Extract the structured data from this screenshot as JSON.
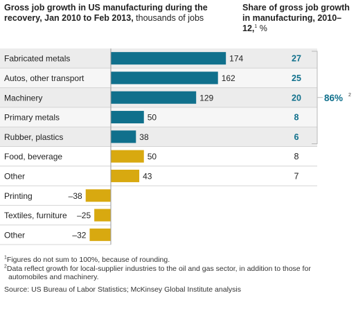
{
  "title": {
    "left_bold": "Gross job growth in US manufacturing during the recovery, Jan 2010 to Feb 2013,",
    "left_normal": " thousands of jobs",
    "right_bold": "Share of gross job growth in manufacturing, 2010–12,",
    "right_sup": "1",
    "right_normal": " %"
  },
  "chart_data": {
    "type": "bar",
    "orientation": "horizontal",
    "categories": [
      "Fabricated metals",
      "Autos, other transport",
      "Machinery",
      "Primary metals",
      "Rubber, plastics",
      "Food, beverage",
      "Other",
      "Printing",
      "Textiles, furniture",
      "Other"
    ],
    "values": [
      174,
      162,
      129,
      50,
      38,
      50,
      43,
      -38,
      -25,
      -32
    ],
    "value_labels": [
      "174",
      "162",
      "129",
      "50",
      "38",
      "50",
      "43",
      "–38",
      "–25",
      "–32"
    ],
    "groups": [
      "top",
      "top",
      "top",
      "top",
      "top",
      "mid",
      "mid",
      "neg",
      "neg",
      "neg"
    ],
    "group_colors": {
      "top": "#10708c",
      "mid": "#d8a910",
      "neg": "#d8a910"
    },
    "row_shading": true,
    "share": {
      "values": [
        "27",
        "25",
        "20",
        "8",
        "6",
        "8",
        "7"
      ],
      "highlight_rows": 5,
      "highlight_color": "#10708c",
      "total_label": "86%",
      "total_sup": "2"
    }
  },
  "footnotes": {
    "note1_sup": "1",
    "note1": "Figures do not sum to 100%, because of rounding.",
    "note2_sup": "2",
    "note2a": "Data reflect growth for local-supplier industries to the oil and gas sector, in addition to those for",
    "note2b": "automobiles and machinery.",
    "source": "Source: US Bureau of Labor Statistics; McKinsey Global Institute analysis"
  }
}
